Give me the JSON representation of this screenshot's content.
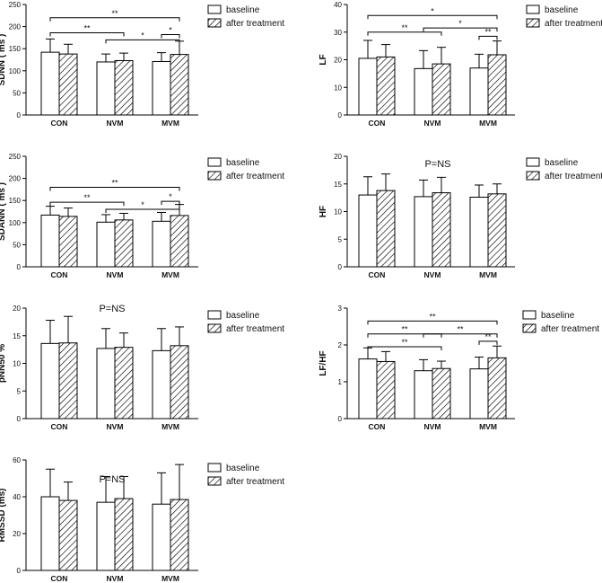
{
  "legend": {
    "baseline": "baseline",
    "after": "after treatment"
  },
  "chart_data": [
    {
      "type": "bar",
      "ylabel": "SDNN ( ms )",
      "ylim": [
        0,
        250
      ],
      "yticks": [
        0,
        50,
        100,
        150,
        200,
        250
      ],
      "categories": [
        "CON",
        "NVM",
        "MVM"
      ],
      "series": [
        {
          "name": "baseline",
          "values": [
            142,
            120,
            121
          ],
          "errors": [
            30,
            18,
            20
          ]
        },
        {
          "name": "after treatment",
          "values": [
            138,
            123,
            137
          ],
          "errors": [
            22,
            17,
            30
          ]
        }
      ],
      "significance": [
        {
          "from": 0,
          "to": 2,
          "label": "**",
          "y": 220
        },
        {
          "from": 0,
          "to": 1,
          "label": "**",
          "y": 186
        },
        {
          "from": 1,
          "to": 2,
          "label": "*",
          "y": 170
        },
        {
          "from": 2,
          "to": 2,
          "label": "*",
          "y": 182
        }
      ],
      "annotation": ""
    },
    {
      "type": "bar",
      "ylabel": "LF",
      "ylim": [
        0,
        40
      ],
      "yticks": [
        0,
        10,
        20,
        30,
        40
      ],
      "categories": [
        "CON",
        "NVM",
        "MVM"
      ],
      "series": [
        {
          "name": "baseline",
          "values": [
            20.5,
            16.8,
            17.0
          ],
          "errors": [
            6.5,
            6.5,
            5.0
          ]
        },
        {
          "name": "after treatment",
          "values": [
            21.0,
            18.5,
            21.8
          ],
          "errors": [
            4.5,
            6.0,
            5.0
          ]
        }
      ],
      "significance": [
        {
          "from": 0,
          "to": 2,
          "label": "*",
          "y": 36
        },
        {
          "from": 0,
          "to": 1,
          "label": "**",
          "y": 30
        },
        {
          "from": 1,
          "to": 2,
          "label": "*",
          "y": 31.5
        },
        {
          "from": 2,
          "to": 2,
          "label": "**",
          "y": 28.5
        }
      ],
      "annotation": ""
    },
    {
      "type": "bar",
      "ylabel": "SDANN ( ms )",
      "ylim": [
        0,
        250
      ],
      "yticks": [
        0,
        50,
        100,
        150,
        200,
        250
      ],
      "categories": [
        "CON",
        "NVM",
        "MVM"
      ],
      "series": [
        {
          "name": "baseline",
          "values": [
            117,
            101,
            103
          ],
          "errors": [
            20,
            17,
            20
          ]
        },
        {
          "name": "after treatment",
          "values": [
            114,
            106,
            116
          ],
          "errors": [
            19,
            15,
            25
          ]
        }
      ],
      "significance": [
        {
          "from": 0,
          "to": 2,
          "label": "**",
          "y": 180
        },
        {
          "from": 0,
          "to": 1,
          "label": "**",
          "y": 146
        },
        {
          "from": 1,
          "to": 2,
          "label": "*",
          "y": 130
        },
        {
          "from": 2,
          "to": 2,
          "label": "*",
          "y": 148
        }
      ],
      "annotation": ""
    },
    {
      "type": "bar",
      "ylabel": "HF",
      "ylim": [
        0,
        20
      ],
      "yticks": [
        0,
        5,
        10,
        15,
        20
      ],
      "categories": [
        "CON",
        "NVM",
        "MVM"
      ],
      "series": [
        {
          "name": "baseline",
          "values": [
            13.0,
            12.7,
            12.6
          ],
          "errors": [
            3.3,
            3.0,
            2.2
          ]
        },
        {
          "name": "after treatment",
          "values": [
            13.8,
            13.4,
            13.2
          ],
          "errors": [
            3.0,
            2.8,
            1.8
          ]
        }
      ],
      "significance": [],
      "annotation": "P=NS"
    },
    {
      "type": "bar",
      "ylabel": "pNN50 %",
      "ylim": [
        0,
        20
      ],
      "yticks": [
        0,
        5,
        10,
        15,
        20
      ],
      "categories": [
        "CON",
        "NVM",
        "MVM"
      ],
      "series": [
        {
          "name": "baseline",
          "values": [
            13.6,
            12.7,
            12.3
          ],
          "errors": [
            4.2,
            3.6,
            4.0
          ]
        },
        {
          "name": "after treatment",
          "values": [
            13.7,
            12.9,
            13.2
          ],
          "errors": [
            4.8,
            2.6,
            3.4
          ]
        }
      ],
      "significance": [],
      "annotation": "P=NS"
    },
    {
      "type": "bar",
      "ylabel": "LF/HF",
      "ylim": [
        0,
        3
      ],
      "yticks": [
        0,
        1,
        2,
        3
      ],
      "categories": [
        "CON",
        "NVM",
        "MVM"
      ],
      "series": [
        {
          "name": "baseline",
          "values": [
            1.62,
            1.3,
            1.35
          ],
          "errors": [
            0.3,
            0.3,
            0.32
          ]
        },
        {
          "name": "after treatment",
          "values": [
            1.55,
            1.36,
            1.65
          ],
          "errors": [
            0.27,
            0.2,
            0.32
          ]
        }
      ],
      "significance": [
        {
          "from": 0,
          "to": 2,
          "label": "**",
          "y": 2.65
        },
        {
          "from": 0,
          "to": 1,
          "label": "**",
          "y": 2.3
        },
        {
          "from": 1,
          "to": 2,
          "label": "**",
          "y": 2.3
        },
        {
          "from": 0,
          "to": 1,
          "label": "**",
          "y": 1.95
        },
        {
          "from": 2,
          "to": 2,
          "label": "**",
          "y": 2.1
        }
      ],
      "annotation": ""
    },
    {
      "type": "bar",
      "ylabel": "RMSSD (ms)",
      "ylim": [
        0,
        60
      ],
      "yticks": [
        0,
        20,
        40,
        60
      ],
      "categories": [
        "CON",
        "NVM",
        "MVM"
      ],
      "series": [
        {
          "name": "baseline",
          "values": [
            40,
            37,
            36
          ],
          "errors": [
            15,
            14,
            17
          ]
        },
        {
          "name": "after treatment",
          "values": [
            38,
            39,
            38.5
          ],
          "errors": [
            10,
            12,
            19
          ]
        }
      ],
      "significance": [],
      "annotation": "P=NS"
    }
  ]
}
